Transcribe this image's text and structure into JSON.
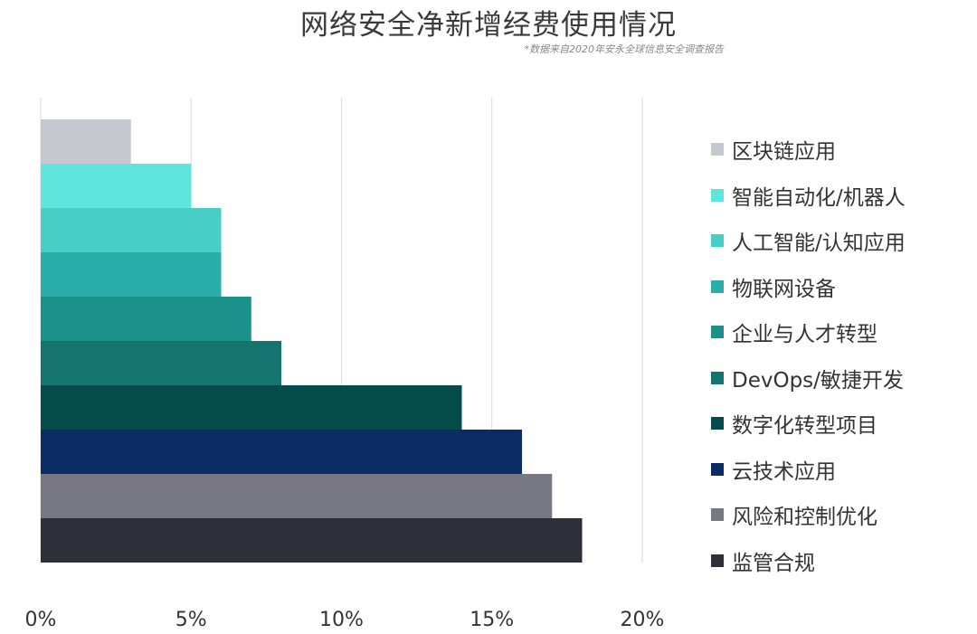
{
  "title": "网络安全净新增经费使用情况",
  "subtitle": "*数据来自2020年安永全球信息安全调查报告",
  "chart_data": {
    "type": "bar",
    "orientation": "horizontal",
    "xlim": [
      0,
      20
    ],
    "x_ticks": [
      "0%",
      "5%",
      "10%",
      "15%",
      "20%"
    ],
    "grid": "vertical",
    "legend_position": "right",
    "unit": "%",
    "bars": [
      {
        "label": "区块链应用",
        "value": 3,
        "color": "#c7c7cf"
      },
      {
        "label": "智能自动化/机器人",
        "value": 5,
        "color": "#5ee5de"
      },
      {
        "label": "人工智能/认知应用",
        "value": 6,
        "color": "#47cfc5"
      },
      {
        "label": "物联网设备",
        "value": 6,
        "color": "#2aaeaa"
      },
      {
        "label": "企业与人才转型",
        "value": 7,
        "color": "#1b918c"
      },
      {
        "label": "DevOps/敏捷开发",
        "value": 8,
        "color": "#167470"
      },
      {
        "label": "数字化转型项目",
        "value": 14,
        "color": "#064b4b"
      },
      {
        "label": "云技术应用",
        "value": 16,
        "color": "#0b2c62"
      },
      {
        "label": "风险和控制优化",
        "value": 17,
        "color": "#777882"
      },
      {
        "label": "监管合规",
        "value": 18,
        "color": "#2e2e38"
      }
    ]
  }
}
